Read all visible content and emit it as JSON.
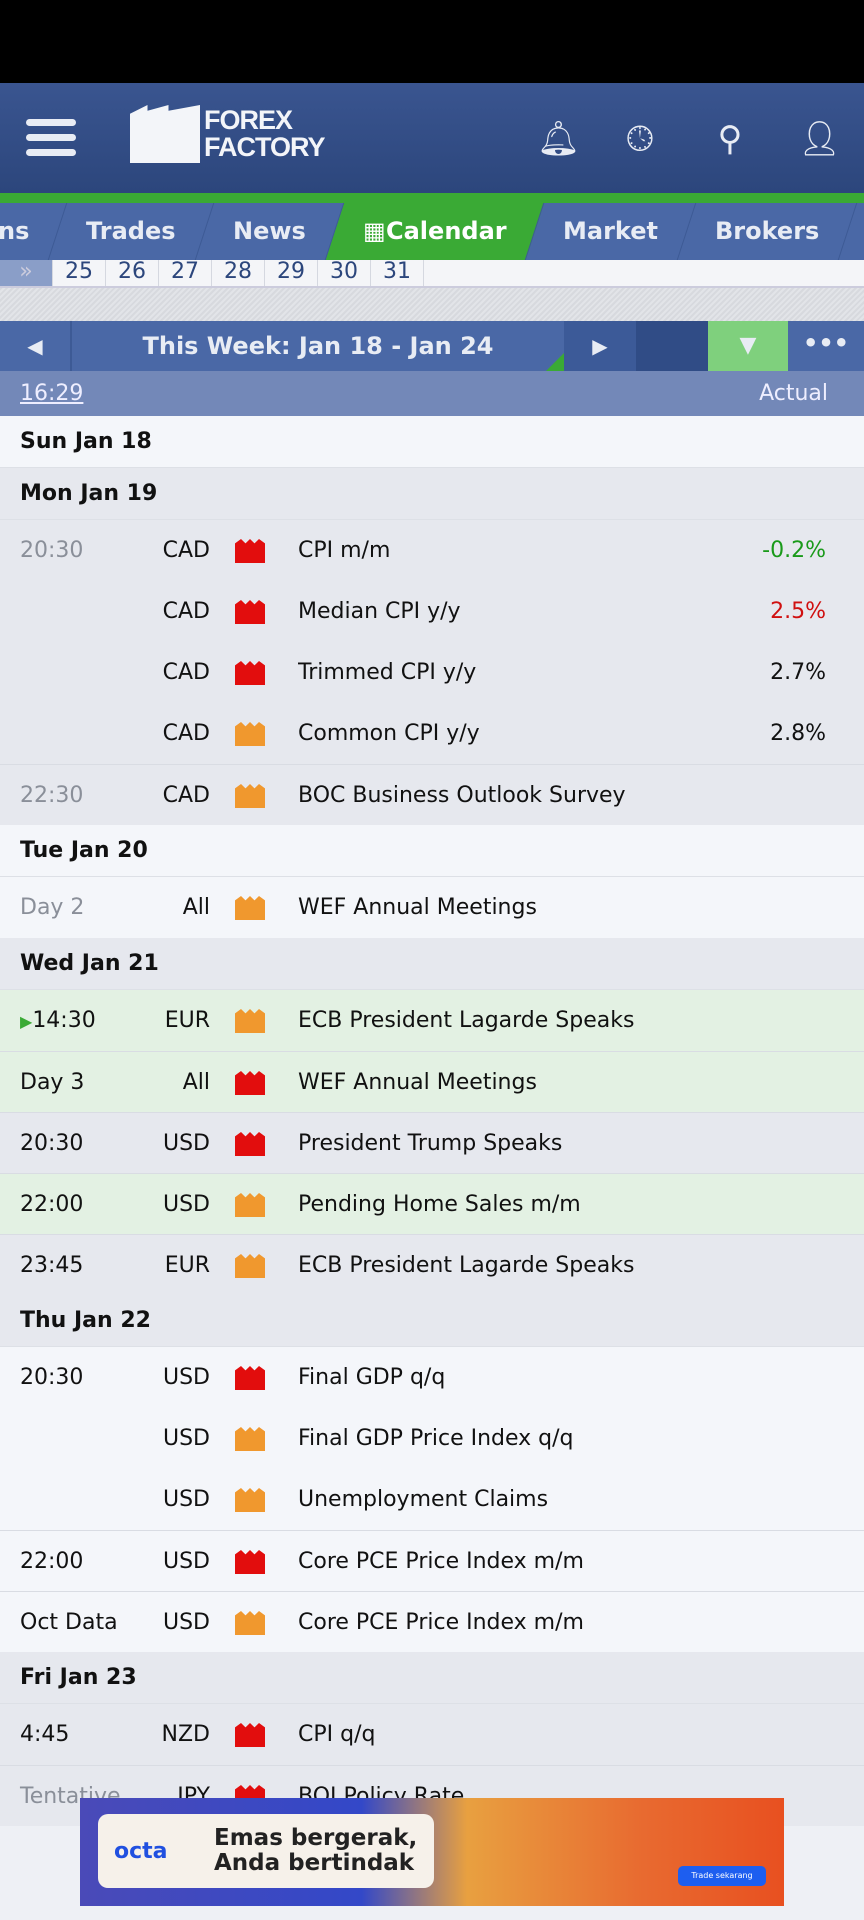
{
  "header": {
    "logo_top": "FOREX",
    "logo_bottom": "FACTORY",
    "icons": [
      "menu-icon",
      "bell-icon",
      "clock-icon",
      "search-icon",
      "user-icon"
    ]
  },
  "tabs": [
    {
      "label": "ns"
    },
    {
      "label": "Trades"
    },
    {
      "label": "News"
    },
    {
      "label": "Calendar",
      "active": true
    },
    {
      "label": "Market"
    },
    {
      "label": "Brokers"
    }
  ],
  "dates": [
    "»",
    "25",
    "26",
    "27",
    "28",
    "29",
    "30",
    "31"
  ],
  "week": {
    "prev": "◀",
    "title": "This Week: Jan 18 - Jan 24",
    "next": "▶",
    "filter": "▼",
    "more": "•••"
  },
  "columns": {
    "time": "16:29",
    "actual": "Actual"
  },
  "rows": [
    {
      "type": "day",
      "label": "Sun Jan 18",
      "shade": "light"
    },
    {
      "type": "day",
      "label": "Mon Jan 19",
      "shade": "dark"
    },
    {
      "type": "ev",
      "time": "20:30",
      "past": true,
      "cur": "CAD",
      "impact": "red",
      "name": "CPI m/m",
      "actual": "-0.2%",
      "dir": "up",
      "shade": "dark",
      "sep": false
    },
    {
      "type": "ev",
      "time": "",
      "cur": "CAD",
      "impact": "red",
      "name": "Median CPI y/y",
      "actual": "2.5%",
      "dir": "down",
      "shade": "dark"
    },
    {
      "type": "ev",
      "time": "",
      "cur": "CAD",
      "impact": "red",
      "name": "Trimmed CPI y/y",
      "actual": "2.7%",
      "shade": "dark"
    },
    {
      "type": "ev",
      "time": "",
      "cur": "CAD",
      "impact": "orange",
      "name": "Common CPI y/y",
      "actual": "2.8%",
      "shade": "dark"
    },
    {
      "type": "ev",
      "time": "22:30",
      "past": true,
      "cur": "CAD",
      "impact": "orange",
      "name": "BOC Business Outlook Survey",
      "shade": "dark",
      "sep": true
    },
    {
      "type": "day",
      "label": "Tue Jan 20",
      "shade": "light"
    },
    {
      "type": "ev",
      "time": "Day 2",
      "past": true,
      "cur": "All",
      "impact": "orange",
      "name": "WEF Annual Meetings",
      "shade": "light"
    },
    {
      "type": "day",
      "label": "Wed Jan 21",
      "shade": "dark"
    },
    {
      "type": "ev",
      "time": "14:30",
      "playing": true,
      "cur": "EUR",
      "impact": "orange",
      "name": "ECB President Lagarde Speaks",
      "shade": "green"
    },
    {
      "type": "ev",
      "time": "Day 3",
      "cur": "All",
      "impact": "red",
      "name": "WEF Annual Meetings",
      "shade": "green",
      "sep": true
    },
    {
      "type": "ev",
      "time": "20:30",
      "cur": "USD",
      "impact": "red",
      "name": "President Trump Speaks",
      "shade": "dark",
      "sep": true
    },
    {
      "type": "ev",
      "time": "22:00",
      "cur": "USD",
      "impact": "orange",
      "name": "Pending Home Sales m/m",
      "shade": "green",
      "sep": true
    },
    {
      "type": "ev",
      "time": "23:45",
      "cur": "EUR",
      "impact": "orange",
      "name": "ECB President Lagarde Speaks",
      "shade": "dark",
      "sep": true
    },
    {
      "type": "day",
      "label": "Thu Jan 22",
      "shade": "dark"
    },
    {
      "type": "ev",
      "time": "20:30",
      "cur": "USD",
      "impact": "red",
      "name": "Final GDP q/q",
      "shade": "light"
    },
    {
      "type": "ev",
      "time": "",
      "cur": "USD",
      "impact": "orange",
      "name": "Final GDP Price Index q/q",
      "shade": "light"
    },
    {
      "type": "ev",
      "time": "",
      "cur": "USD",
      "impact": "orange",
      "name": "Unemployment Claims",
      "shade": "light"
    },
    {
      "type": "ev",
      "time": "22:00",
      "cur": "USD",
      "impact": "red",
      "name": "Core PCE Price Index m/m",
      "shade": "light",
      "sep": true
    },
    {
      "type": "ev",
      "time": "Oct Data",
      "cur": "USD",
      "impact": "orange",
      "name": "Core PCE Price Index m/m",
      "shade": "light",
      "sep": true
    },
    {
      "type": "day",
      "label": "Fri Jan 23",
      "shade": "dark"
    },
    {
      "type": "ev",
      "time": "4:45",
      "cur": "NZD",
      "impact": "red",
      "name": "CPI q/q",
      "shade": "dark"
    },
    {
      "type": "ev",
      "time": "Tentative",
      "past": true,
      "cur": "JPY",
      "impact": "red",
      "name": "BOJ Policy Rate",
      "shade": "dark",
      "sep": true
    }
  ],
  "ad": {
    "brand": "octa",
    "headline_1": "Emas bergerak,",
    "headline_2": "Anda bertindak",
    "button": "Trade sekarang"
  }
}
